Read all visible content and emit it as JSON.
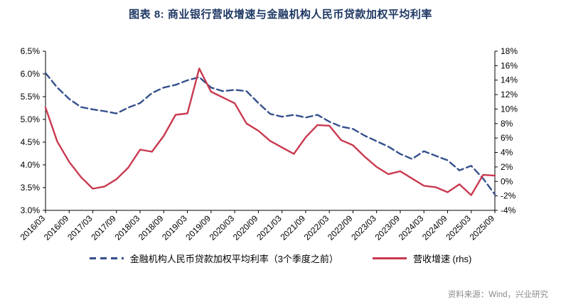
{
  "title": "图表 8: 商业银行营收增速与金融机构人民币贷款加权平均利率",
  "source": "资料来源：Wind，兴业研究",
  "colors": {
    "title": "#1F3864",
    "loan_rate_line": "#35508C",
    "revenue_line": "#C9394F",
    "axis": "#000000",
    "source_text": "#8A8A8A"
  },
  "chart_data": {
    "type": "line",
    "title": "图表 8: 商业银行营收增速与金融机构人民币贷款加权平均利率",
    "grid": false,
    "legend_position": "bottom",
    "x_label_every": 2,
    "x": [
      "2016/03",
      "2016/06",
      "2016/09",
      "2016/12",
      "2017/03",
      "2017/06",
      "2017/09",
      "2017/12",
      "2018/03",
      "2018/06",
      "2018/09",
      "2018/12",
      "2019/03",
      "2019/06",
      "2019/09",
      "2019/12",
      "2020/03",
      "2020/06",
      "2020/09",
      "2020/12",
      "2021/03",
      "2021/06",
      "2021/09",
      "2021/12",
      "2022/03",
      "2022/06",
      "2022/09",
      "2022/12",
      "2023/03",
      "2023/06",
      "2023/09",
      "2023/12",
      "2024/03",
      "2024/06",
      "2024/09",
      "2024/12",
      "2025/03",
      "2025/06",
      "2025/09"
    ],
    "left_axis": {
      "min": 3.0,
      "max": 6.5,
      "step": 0.5,
      "decimals": 1,
      "suffix": "%"
    },
    "right_axis": {
      "min": -4,
      "max": 18,
      "step": 2,
      "decimals": 0,
      "suffix": "%"
    },
    "series": [
      {
        "name": "金融机构人民币贷款加权平均利率（3个季度之前）",
        "axis": "left",
        "line_style": "dashed",
        "color": "#35508C",
        "values": [
          6.02,
          5.7,
          5.45,
          5.27,
          5.22,
          5.18,
          5.13,
          5.26,
          5.36,
          5.58,
          5.7,
          5.76,
          5.86,
          5.93,
          5.7,
          5.62,
          5.65,
          5.62,
          5.36,
          5.12,
          5.06,
          5.1,
          5.04,
          5.1,
          4.95,
          4.84,
          4.79,
          4.64,
          4.52,
          4.4,
          4.24,
          4.13,
          4.3,
          4.2,
          4.1,
          3.88,
          3.98,
          3.7,
          3.35
        ]
      },
      {
        "name": "营收增速 (rhs)",
        "axis": "right",
        "line_style": "solid",
        "color": "#C9394F",
        "values": [
          10.2,
          5.5,
          2.7,
          0.6,
          -1.0,
          -0.7,
          0.3,
          1.9,
          4.4,
          4.1,
          6.3,
          9.2,
          9.4,
          15.6,
          12.4,
          11.6,
          10.8,
          8.0,
          7.0,
          5.6,
          4.7,
          3.8,
          6.1,
          7.8,
          7.7,
          5.7,
          5.0,
          3.4,
          2.0,
          1.0,
          1.4,
          0.4,
          -0.6,
          -0.8,
          -1.5,
          -0.4,
          -1.9,
          0.9,
          0.8
        ]
      }
    ]
  }
}
